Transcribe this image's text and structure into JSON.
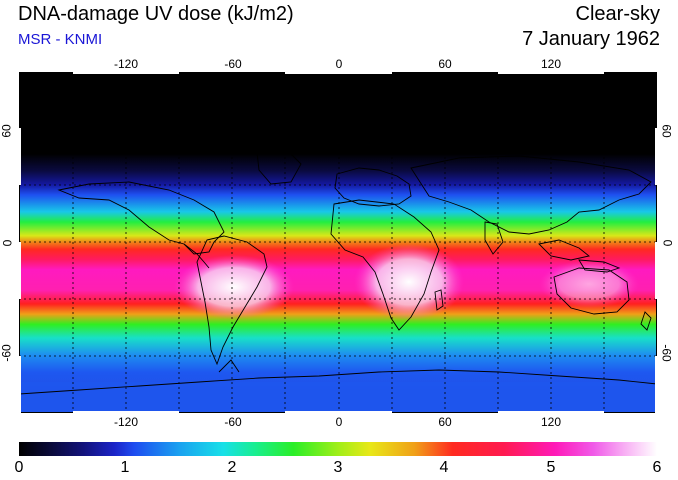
{
  "header": {
    "title": "DNA-damage UV dose (kJ/m2)",
    "source": "MSR - KNMI",
    "condition": "Clear-sky",
    "date": "7 January 1962"
  },
  "map": {
    "lon_top_labels": [
      "-120",
      "-60",
      "0",
      "60",
      "120"
    ],
    "lon_bottom_labels": [
      "-120",
      "-60",
      "0",
      "60",
      "120"
    ],
    "lat_left_labels": [
      "60",
      "0",
      "-60"
    ],
    "lat_right_labels": [
      "60",
      "0",
      "-60"
    ]
  },
  "colorbar": {
    "labels": [
      "0",
      "1",
      "2",
      "3",
      "4",
      "5",
      "6"
    ]
  },
  "colors": {
    "source_text": "#1a16d6",
    "gridline": "#000000",
    "coastline": "#000000"
  }
}
